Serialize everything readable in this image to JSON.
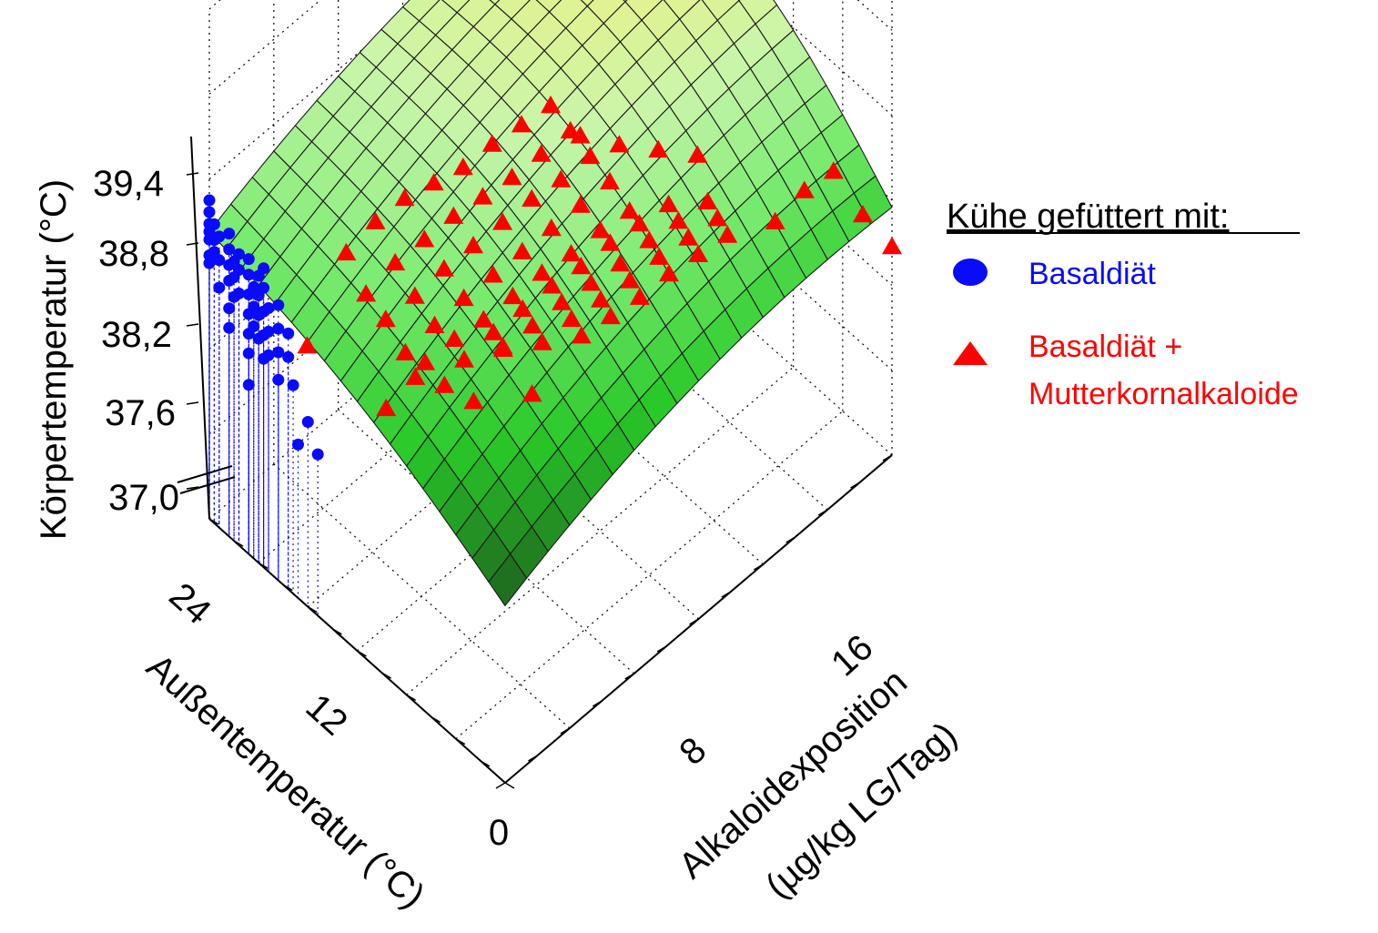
{
  "chart_data": {
    "type": "surface3d-scatter",
    "title": "",
    "zlabel": "Körpertemperatur (°C)",
    "xlabel": "Außentemperatur (°C)",
    "ylabel_line1": "Alkaloidexposition",
    "ylabel_line2": "(µg/kg LG/Tag)",
    "z_ticks": [
      "39,4",
      "38,8",
      "38,2",
      "37,6",
      "37,0"
    ],
    "z_tick_values": [
      39.4,
      38.8,
      38.2,
      37.6,
      37.0
    ],
    "x_ticks": [
      "24",
      "12"
    ],
    "x_tick_values": [
      24,
      12
    ],
    "y_ticks": [
      "0",
      "8",
      "16"
    ],
    "y_tick_values": [
      0,
      8,
      16
    ],
    "xlim": [
      0,
      30
    ],
    "ylim": [
      0,
      20
    ],
    "zlim": [
      36.5,
      39.8
    ],
    "grid": true,
    "legend_position": "right",
    "legend": {
      "title": "Kühe gefüttert mit:",
      "series_blue": "Basaldiät",
      "series_red_line1": "Basaldiät +",
      "series_red_line2": "Mutterkornalkaloide"
    },
    "colors": {
      "series_blue": "#0a0aff",
      "series_red": "#ff0000",
      "surface_low": "#1f7a1f",
      "surface_high": "#f4f07a"
    },
    "series": [
      {
        "name": "Basaldiät",
        "marker": "circle",
        "points": [
          [
            30,
            0,
            38.7
          ],
          [
            30,
            0,
            38.55
          ],
          [
            30,
            0,
            38.4
          ],
          [
            30,
            0,
            38.3
          ],
          [
            30,
            0,
            38.2
          ],
          [
            30,
            0,
            38.0
          ],
          [
            30,
            0,
            37.9
          ],
          [
            29.5,
            0,
            38.1
          ],
          [
            29.5,
            0,
            38.25
          ],
          [
            29.5,
            0,
            38.45
          ],
          [
            29,
            0,
            38.35
          ],
          [
            29,
            0,
            38.05
          ],
          [
            29,
            0,
            37.7
          ],
          [
            28,
            0,
            38.5
          ],
          [
            28,
            0,
            38.3
          ],
          [
            28,
            0,
            38.1
          ],
          [
            28,
            0,
            37.9
          ],
          [
            28,
            0,
            37.55
          ],
          [
            28,
            0,
            37.3
          ],
          [
            27.5,
            0,
            38.2
          ],
          [
            27.5,
            0,
            38.0
          ],
          [
            27.5,
            0,
            37.75
          ],
          [
            27,
            0,
            38.35
          ],
          [
            27,
            0,
            38.15
          ],
          [
            27,
            0,
            37.85
          ],
          [
            26,
            0,
            38.4
          ],
          [
            26,
            0,
            38.2
          ],
          [
            26,
            0,
            37.95
          ],
          [
            26,
            0,
            37.7
          ],
          [
            26,
            0,
            37.45
          ],
          [
            26,
            0,
            37.2
          ],
          [
            26,
            0,
            36.8
          ],
          [
            25.5,
            0,
            38.1
          ],
          [
            25.5,
            0,
            37.85
          ],
          [
            25.5,
            0,
            37.6
          ],
          [
            25,
            0,
            38.3
          ],
          [
            25,
            0,
            38.05
          ],
          [
            25,
            0,
            37.8
          ],
          [
            25,
            0,
            37.5
          ],
          [
            24.5,
            0,
            38.45
          ],
          [
            24.5,
            0,
            38.2
          ],
          [
            24.5,
            0,
            37.9
          ],
          [
            24.5,
            0,
            37.6
          ],
          [
            24.5,
            0,
            37.3
          ],
          [
            24,
            0,
            38.0
          ],
          [
            24,
            0,
            37.7
          ],
          [
            24,
            0,
            37.4
          ],
          [
            23,
            0,
            38.15
          ],
          [
            23,
            0,
            37.85
          ],
          [
            23,
            0,
            37.55
          ],
          [
            23,
            0,
            37.2
          ],
          [
            22,
            0,
            37.9
          ],
          [
            22,
            0,
            37.6
          ],
          [
            21.5,
            0,
            37.3
          ],
          [
            21,
            0,
            36.6
          ],
          [
            20,
            0,
            37.0
          ],
          [
            19,
            0,
            36.7
          ]
        ]
      },
      {
        "name": "Basaldiät + Mutterkornalkaloide",
        "marker": "triangle",
        "points": [
          [
            22,
            3,
            38.3
          ],
          [
            21,
            4,
            38.6
          ],
          [
            20,
            5,
            38.8
          ],
          [
            19,
            6,
            38.9
          ],
          [
            18,
            7,
            39.0
          ],
          [
            17,
            8,
            39.2
          ],
          [
            16,
            9,
            39.35
          ],
          [
            15,
            10,
            39.5
          ],
          [
            20,
            3,
            38.0
          ],
          [
            19,
            4,
            38.3
          ],
          [
            18,
            5,
            38.5
          ],
          [
            17,
            6,
            38.7
          ],
          [
            16,
            7,
            38.85
          ],
          [
            15,
            8,
            39.0
          ],
          [
            14,
            9,
            39.2
          ],
          [
            13,
            10,
            39.4
          ],
          [
            18,
            3,
            37.9
          ],
          [
            17,
            4,
            38.1
          ],
          [
            16,
            5,
            38.35
          ],
          [
            15,
            6,
            38.55
          ],
          [
            14,
            7,
            38.75
          ],
          [
            13,
            8,
            38.95
          ],
          [
            12,
            9,
            39.1
          ],
          [
            11,
            10,
            39.3
          ],
          [
            16,
            3,
            37.7
          ],
          [
            15,
            4,
            37.95
          ],
          [
            14,
            5,
            38.2
          ],
          [
            13,
            6,
            38.4
          ],
          [
            12,
            7,
            38.6
          ],
          [
            11,
            8,
            38.8
          ],
          [
            10,
            9,
            39.0
          ],
          [
            9,
            10,
            39.2
          ],
          [
            14,
            3,
            37.8
          ],
          [
            13,
            4,
            38.0
          ],
          [
            12,
            5,
            38.15
          ],
          [
            11,
            6,
            38.35
          ],
          [
            10,
            7,
            38.55
          ],
          [
            9,
            8,
            38.7
          ],
          [
            8,
            9,
            38.9
          ],
          [
            7,
            10,
            39.05
          ],
          [
            12,
            4,
            37.85
          ],
          [
            11,
            5,
            38.1
          ],
          [
            10,
            6,
            38.3
          ],
          [
            9,
            7,
            38.5
          ],
          [
            8,
            8,
            38.65
          ],
          [
            7,
            9,
            38.85
          ],
          [
            6,
            10,
            39.0
          ],
          [
            5,
            11,
            39.15
          ],
          [
            10,
            5,
            38.0
          ],
          [
            9,
            6,
            38.2
          ],
          [
            8,
            7,
            38.4
          ],
          [
            7,
            8,
            38.55
          ],
          [
            6,
            9,
            38.7
          ],
          [
            5,
            10,
            38.9
          ],
          [
            4,
            11,
            39.05
          ],
          [
            3,
            12,
            39.2
          ],
          [
            8,
            6,
            38.1
          ],
          [
            7,
            7,
            38.3
          ],
          [
            6,
            8,
            38.45
          ],
          [
            5,
            9,
            38.6
          ],
          [
            4,
            10,
            38.8
          ],
          [
            3,
            11,
            38.95
          ],
          [
            2,
            12,
            39.1
          ],
          [
            6,
            7,
            38.2
          ],
          [
            5,
            8,
            38.35
          ],
          [
            4,
            9,
            38.5
          ],
          [
            3,
            10,
            38.7
          ],
          [
            2,
            11,
            38.85
          ],
          [
            1,
            12,
            39.0
          ],
          [
            16,
            2,
            37.2
          ],
          [
            15,
            3,
            37.5
          ],
          [
            14,
            4,
            37.3
          ],
          [
            13,
            5,
            37.0
          ],
          [
            12,
            6,
            37.6
          ],
          [
            11,
            7,
            36.9
          ],
          [
            24,
            2,
            37.1
          ],
          [
            4,
            16,
            38.0
          ],
          [
            3,
            17,
            38.3
          ],
          [
            2,
            18,
            38.45
          ],
          [
            1,
            19,
            37.8
          ],
          [
            0,
            20,
            37.3
          ],
          [
            12,
            10,
            39.45
          ],
          [
            10,
            11,
            39.35
          ],
          [
            8,
            12,
            39.3
          ],
          [
            6,
            13,
            39.25
          ]
        ]
      }
    ]
  }
}
